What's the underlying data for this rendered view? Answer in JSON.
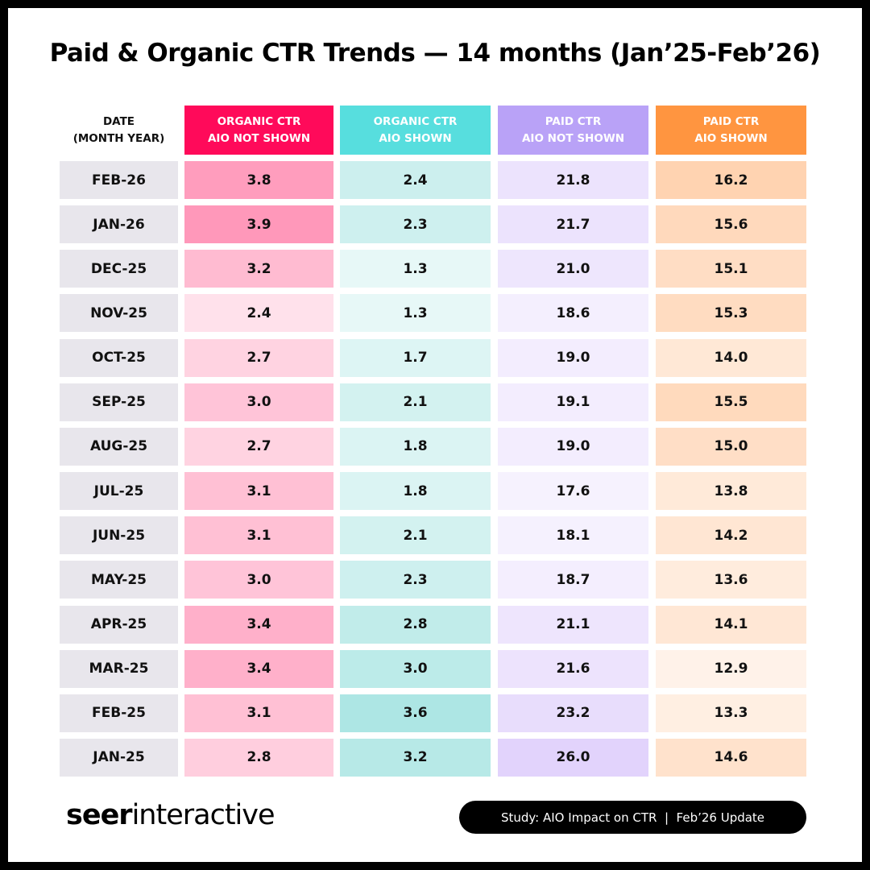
{
  "title": "Paid & Organic CTR Trends — 14 months (Jan’25-Feb’26)",
  "table": {
    "headers": [
      [
        "DATE",
        "(MONTH YEAR)"
      ],
      [
        "ORGANIC CTR",
        "AIO NOT SHOWN"
      ],
      [
        "ORGANIC CTR",
        "AIO SHOWN"
      ],
      [
        "PAID CTR",
        "AIO NOT SHOWN"
      ],
      [
        "PAID CTR",
        "AIO SHOWN"
      ]
    ],
    "rows": [
      [
        "FEB-26",
        "3.8",
        "2.4",
        "21.8",
        "16.2"
      ],
      [
        "JAN-26",
        "3.9",
        "2.3",
        "21.7",
        "15.6"
      ],
      [
        "DEC-25",
        "3.2",
        "1.3",
        "21.0",
        "15.1"
      ],
      [
        "NOV-25",
        "2.4",
        "1.3",
        "18.6",
        "15.3"
      ],
      [
        "OCT-25",
        "2.7",
        "1.7",
        "19.0",
        "14.0"
      ],
      [
        "SEP-25",
        "3.0",
        "2.1",
        "19.1",
        "15.5"
      ],
      [
        "AUG-25",
        "2.7",
        "1.8",
        "19.0",
        "15.0"
      ],
      [
        "JUL-25",
        "3.1",
        "1.8",
        "17.6",
        "13.8"
      ],
      [
        "JUN-25",
        "3.1",
        "2.1",
        "18.1",
        "14.2"
      ],
      [
        "MAY-25",
        "3.0",
        "2.3",
        "18.7",
        "13.6"
      ],
      [
        "APR-25",
        "3.4",
        "2.8",
        "21.1",
        "14.1"
      ],
      [
        "MAR-25",
        "3.4",
        "3.0",
        "21.6",
        "12.9"
      ],
      [
        "FEB-25",
        "3.1",
        "3.6",
        "23.2",
        "13.3"
      ],
      [
        "JAN-25",
        "2.8",
        "3.2",
        "26.0",
        "14.6"
      ]
    ]
  },
  "footer": {
    "logo_bold": "seer",
    "logo_light": "interactive",
    "badge": "Study: AIO Impact on CTR  |  Feb’26 Update"
  }
}
